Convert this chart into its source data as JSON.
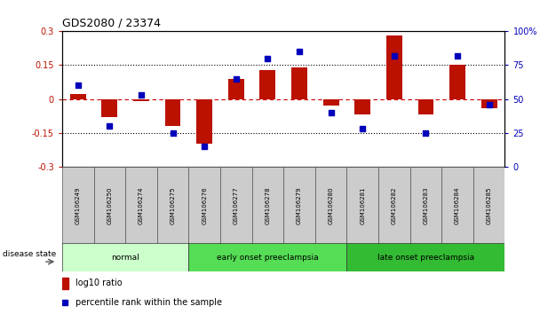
{
  "title": "GDS2080 / 23374",
  "samples": [
    "GSM106249",
    "GSM106250",
    "GSM106274",
    "GSM106275",
    "GSM106276",
    "GSM106277",
    "GSM106278",
    "GSM106279",
    "GSM106280",
    "GSM106281",
    "GSM106282",
    "GSM106283",
    "GSM106284",
    "GSM106285"
  ],
  "log10_ratio": [
    0.02,
    -0.08,
    -0.01,
    -0.12,
    -0.2,
    0.09,
    0.13,
    0.14,
    -0.03,
    -0.07,
    0.28,
    -0.07,
    0.15,
    -0.04
  ],
  "percentile_rank": [
    60,
    30,
    53,
    25,
    15,
    65,
    80,
    85,
    40,
    28,
    82,
    25,
    82,
    46
  ],
  "groups": [
    {
      "label": "normal",
      "start": 0,
      "end": 4,
      "color": "#ccffcc"
    },
    {
      "label": "early onset preeclampsia",
      "start": 4,
      "end": 9,
      "color": "#55dd55"
    },
    {
      "label": "late onset preeclampsia",
      "start": 9,
      "end": 14,
      "color": "#33bb33"
    }
  ],
  "ylim_left": [
    -0.3,
    0.3
  ],
  "ylim_right": [
    0,
    100
  ],
  "yticks_left": [
    -0.3,
    -0.15,
    0.0,
    0.15,
    0.3
  ],
  "yticks_right": [
    0,
    25,
    50,
    75,
    100
  ],
  "bar_color": "#bb1100",
  "dot_color": "#0000bb",
  "hline_color": "#cc0000",
  "dot_size": 25,
  "bar_width": 0.5,
  "fig_width": 6.08,
  "fig_height": 3.54,
  "fig_dpi": 100
}
